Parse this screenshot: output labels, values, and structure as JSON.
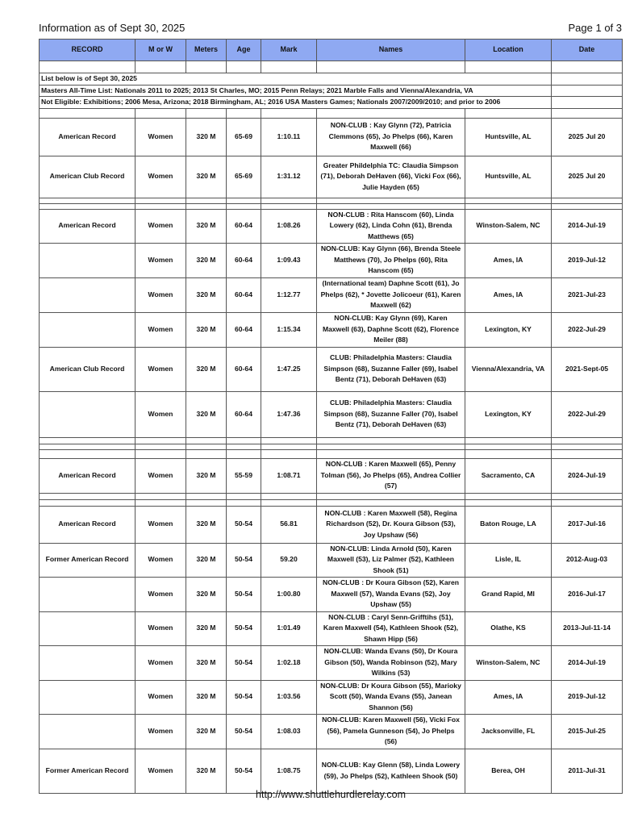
{
  "header": {
    "title": "Information as of Sept 30, 2025",
    "page": "Page 1 of 3"
  },
  "columns": [
    "RECORD",
    "M or W",
    "Meters",
    "Age",
    "Mark",
    "Names",
    "Location",
    "Date"
  ],
  "colors": {
    "header_bg": "#8fa9f2"
  },
  "notes": [
    "List below is of Sept 30, 2025",
    "Masters All-Time List:  Nationals 2011 to 2025;  2013 St Charles, MO; 2015 Penn Relays; 2021 Marble Falls and Vienna/Alexandria, VA",
    "Not Eligible: Exhibitions;  2006 Mesa, Arizona;  2018 Birmingham, AL; 2016 USA Masters Games; Nationals  2007/2009/2010; and prior to 2006"
  ],
  "rows": [
    {
      "spacer": true
    },
    {
      "note": 0
    },
    {
      "note": 1
    },
    {
      "note": 2
    },
    {
      "spacer": true
    },
    {
      "cells": [
        "American Record",
        "Women",
        "320 M",
        "65-69",
        "1:10.11",
        "NON-CLUB : Kay Glynn (72), Patricia Clemmons (65), Jo Phelps (66), Karen Maxwell (66)",
        "Huntsville, AL",
        "2025 Jul 20"
      ]
    },
    {
      "cells": [
        "American Club Record",
        "Women",
        "320 M",
        "65-69",
        "1:31.12",
        "Greater Phildelphia TC: Claudia Simpson (71), Deborah DeHaven (66), Vicki Fox (66), Julie Hayden (65)",
        "Huntsville, AL",
        "2025 Jul 20"
      ]
    },
    {
      "spacer": true
    },
    {
      "spacer": true
    },
    {
      "cells": [
        "American Record",
        "Women",
        "320 M",
        "60-64",
        "1:08.26",
        "NON-CLUB : Rita Hanscom (60), Linda Lowery (62), Linda Cohn (61), Brenda Matthews (65)",
        "Winston-Salem, NC",
        "2014-Jul-19"
      ]
    },
    {
      "cells": [
        "",
        "Women",
        "320 M",
        "60-64",
        "1:09.43",
        "NON-CLUB: Kay Glynn (66), Brenda Steele Matthews (70), Jo Phelps (60), Rita Hanscom (65)",
        "Ames, IA",
        "2019-Jul-12"
      ]
    },
    {
      "cells": [
        "",
        "Women",
        "320 M",
        "60-64",
        "1:12.77",
        "(International team) Daphne Scott (61), Jo Phelps (62), * Jovette Jolicoeur (61), Karen Maxwell (62)",
        "Ames, IA",
        "2021-Jul-23"
      ]
    },
    {
      "cells": [
        "",
        "Women",
        "320 M",
        "60-64",
        "1:15.34",
        "NON-CLUB: Kay Glynn (69), Karen Maxwell (63), Daphne Scott (62), Florence Meiler (88)",
        "Lexington, KY",
        "2022-Jul-29"
      ]
    },
    {
      "cells": [
        "American Club Record",
        "Women",
        "320 M",
        "60-64",
        "1:47.25",
        "CLUB: Philadelphia Masters: Claudia Simpson (68), Suzanne Faller (69), Isabel Bentz (71), Deborah DeHaven (63)",
        "Vienna/Alexandria, VA",
        "2021-Sept-05"
      ]
    },
    {
      "cells": [
        "",
        "Women",
        "320 M",
        "60-64",
        "1:47.36",
        "CLUB: Philadelphia Masters: Claudia Simpson (68), Suzanne Faller (70), Isabel Bentz (71), Deborah DeHaven (63)",
        "Lexington, KY",
        "2022-Jul-29"
      ]
    },
    {
      "spacer": true
    },
    {
      "spacer": true
    },
    {
      "spacer": true
    },
    {
      "cells": [
        "American Record",
        "Women",
        "320 M",
        "55-59",
        "1:08.71",
        "NON-CLUB : Karen Maxwell (65), Penny Tolman (56), Jo Phelps (65), Andrea Collier (57)",
        "Sacramento, CA",
        "2024-Jul-19"
      ]
    },
    {
      "spacer": true
    },
    {
      "spacer": true
    },
    {
      "cells": [
        "American Record",
        "Women",
        "320 M",
        "50-54",
        "56.81",
        "NON-CLUB : Karen Maxwell (58), Regina Richardson (52), Dr. Koura Gibson (53), Joy Upshaw (56)",
        "Baton Rouge, LA",
        "2017-Jul-16"
      ]
    },
    {
      "cells": [
        "Former American Record",
        "Women",
        "320 M",
        "50-54",
        "59.20",
        "NON-CLUB: Linda Arnold (50), Karen Maxwell (53), Liz Palmer (52), Kathleen Shook (51)",
        "Lisle, IL",
        "2012-Aug-03"
      ]
    },
    {
      "cells": [
        "",
        "Women",
        "320 M",
        "50-54",
        "1:00.80",
        "NON-CLUB : Dr Koura Gibson (52), Karen Maxwell (57), Wanda Evans (52), Joy Upshaw (55)",
        "Grand Rapid, MI",
        "2016-Jul-17"
      ]
    },
    {
      "cells": [
        "",
        "Women",
        "320 M",
        "50-54",
        "1:01.49",
        "NON-CLUB : Caryl Senn-Grifftihs (51), Karen Maxwell (54), Kathleen Shook (52), Shawn Hipp (56)",
        "Olathe, KS",
        "2013-Jul-11-14"
      ]
    },
    {
      "cells": [
        "",
        "Women",
        "320 M",
        "50-54",
        "1:02.18",
        "NON-CLUB: Wanda Evans (50), Dr Koura Gibson (50), Wanda Robinson (52), Mary Wilkins (53)",
        "Winston-Salem, NC",
        "2014-Jul-19"
      ]
    },
    {
      "cells": [
        "",
        "Women",
        "320 M",
        "50-54",
        "1:03.56",
        "NON-CLUB: Dr Koura Gibson (55), Marioky Scott (50), Wanda Evans (55), Janean Shannon (56)",
        "Ames, IA",
        "2019-Jul-12"
      ]
    },
    {
      "cells": [
        "",
        "Women",
        "320 M",
        "50-54",
        "1:08.03",
        "NON-CLUB: Karen Maxwell (56), Vicki Fox (56), Pamela Gunneson (54), Jo Phelps (56)",
        "Jacksonville, FL",
        "2015-Jul-25"
      ]
    },
    {
      "cells": [
        "Former American Record",
        "Women",
        "320 M",
        "50-54",
        "1:08.75",
        "NON-CLUB: Kay Glenn (58), Linda Lowery (59), Jo Phelps (52), Kathleen Shook (50)",
        "Berea, OH",
        "2011-Jul-31"
      ]
    }
  ],
  "footer": "http://www.shuttlehurdlerelay.com"
}
